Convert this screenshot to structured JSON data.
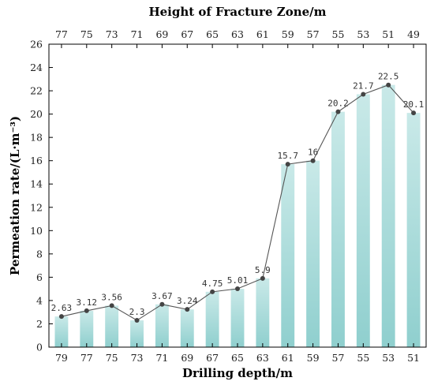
{
  "chart_data": {
    "type": "bar",
    "categories": [
      "79",
      "77",
      "75",
      "73",
      "71",
      "69",
      "67",
      "65",
      "63",
      "61",
      "59",
      "57",
      "55",
      "53",
      "51"
    ],
    "top_categories": [
      "77",
      "75",
      "73",
      "71",
      "69",
      "67",
      "65",
      "63",
      "61",
      "59",
      "57",
      "55",
      "53",
      "51",
      "49"
    ],
    "values": [
      2.63,
      3.12,
      3.56,
      2.3,
      3.67,
      3.24,
      4.75,
      5.01,
      5.9,
      15.7,
      16,
      20.2,
      21.7,
      22.5,
      20.1
    ],
    "value_labels": [
      "2.63",
      "3.12",
      "3.56",
      "2.3",
      "3.67",
      "3.24",
      "4.75",
      "5.01",
      "5.9",
      "15.7",
      "16",
      "20.2",
      "21.7",
      "22.5",
      "20.1"
    ],
    "overlay_line": true,
    "title": "",
    "xlabel": "Drilling depth/m",
    "top_xlabel": "Height of Fracture Zone/m",
    "ylabel": "Permeation rate/(L·m⁻³)",
    "ylim": [
      0,
      26
    ],
    "yticks": [
      0,
      2,
      4,
      6,
      8,
      10,
      12,
      14,
      16,
      18,
      20,
      22,
      24,
      26
    ],
    "grid": false,
    "legend": "none",
    "colors": {
      "bar_top": "#c9e9e8",
      "bar_bottom": "#8fcfce",
      "line": "#555555",
      "marker": "#444444",
      "axis": "#000000"
    }
  }
}
